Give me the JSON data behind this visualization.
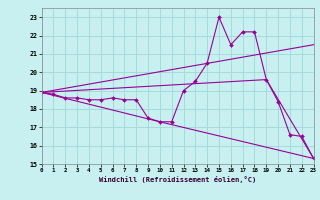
{
  "xlabel": "Windchill (Refroidissement éolien,°C)",
  "xlim": [
    0,
    23
  ],
  "ylim": [
    15,
    23.5
  ],
  "yticks": [
    15,
    16,
    17,
    18,
    19,
    20,
    21,
    22,
    23
  ],
  "xticks": [
    0,
    1,
    2,
    3,
    4,
    5,
    6,
    7,
    8,
    9,
    10,
    11,
    12,
    13,
    14,
    15,
    16,
    17,
    18,
    19,
    20,
    21,
    22,
    23
  ],
  "bg_color": "#c8f0f0",
  "grid_color": "#a0d8d8",
  "line_color": "#990099",
  "line1_x": [
    0,
    1,
    2,
    3,
    4,
    5,
    6,
    7,
    8,
    9,
    10,
    11,
    12,
    13,
    14,
    15,
    16,
    17,
    18,
    19,
    20,
    21,
    22,
    23
  ],
  "line1_y": [
    18.9,
    18.8,
    18.6,
    18.6,
    18.5,
    18.5,
    18.6,
    18.5,
    18.5,
    17.5,
    17.3,
    17.3,
    19.0,
    19.5,
    20.5,
    23.0,
    21.5,
    22.2,
    22.2,
    19.6,
    18.4,
    16.6,
    16.5,
    15.3
  ],
  "line2_x": [
    0,
    10,
    23
  ],
  "line2_y": [
    18.9,
    17.3,
    15.3
  ],
  "line3_x": [
    0,
    23
  ],
  "line3_y": [
    18.9,
    21.5
  ],
  "line4_x": [
    0,
    19,
    23
  ],
  "line4_y": [
    18.9,
    19.6,
    15.3
  ]
}
